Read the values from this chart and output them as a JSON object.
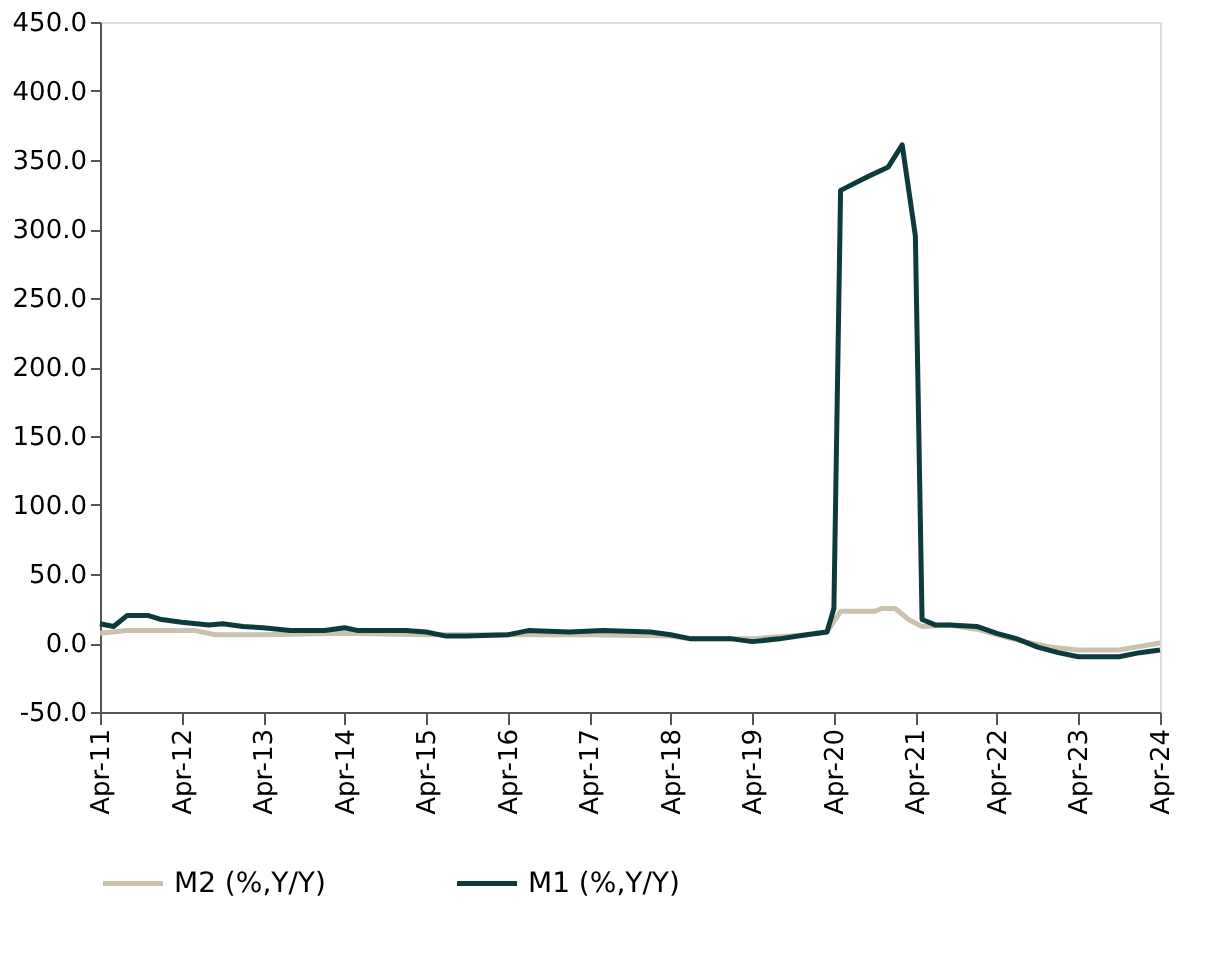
{
  "chart_data": {
    "type": "line",
    "xlim": [
      "2011-04",
      "2024-04"
    ],
    "xticks": [
      {
        "value": "2011-04",
        "label": "Apr-11"
      },
      {
        "value": "2012-04",
        "label": "Apr-12"
      },
      {
        "value": "2013-04",
        "label": "Apr-13"
      },
      {
        "value": "2014-04",
        "label": "Apr-14"
      },
      {
        "value": "2015-04",
        "label": "Apr-15"
      },
      {
        "value": "2016-04",
        "label": "Apr-16"
      },
      {
        "value": "2017-04",
        "label": "Apr-17"
      },
      {
        "value": "2018-04",
        "label": "Apr-18"
      },
      {
        "value": "2019-04",
        "label": "Apr-19"
      },
      {
        "value": "2020-04",
        "label": "Apr-20"
      },
      {
        "value": "2021-04",
        "label": "Apr-21"
      },
      {
        "value": "2022-04",
        "label": "Apr-22"
      },
      {
        "value": "2023-04",
        "label": "Apr-23"
      },
      {
        "value": "2024-04",
        "label": "Apr-24"
      }
    ],
    "ylim": [
      -50,
      450
    ],
    "yticks": [
      {
        "value": -50,
        "label": "-50.0"
      },
      {
        "value": 0,
        "label": "0.0"
      },
      {
        "value": 50,
        "label": "50.0"
      },
      {
        "value": 100,
        "label": "100.0"
      },
      {
        "value": 150,
        "label": "150.0"
      },
      {
        "value": 200,
        "label": "200.0"
      },
      {
        "value": 250,
        "label": "250.0"
      },
      {
        "value": 300,
        "label": "300.0"
      },
      {
        "value": 350,
        "label": "350.0"
      },
      {
        "value": 400,
        "label": "400.0"
      },
      {
        "value": 450,
        "label": "450.0"
      }
    ],
    "grid": false,
    "legend": "bottom",
    "marker": "none",
    "line_style": "solid",
    "series": [
      {
        "name": "M2 (%,Y/Y)",
        "color": "#c8c2ae",
        "x": [
          "2011-04",
          "2011-08",
          "2012-06",
          "2012-09",
          "2013-04",
          "2014-04",
          "2015-04",
          "2016-04",
          "2017-04",
          "2018-04",
          "2018-07",
          "2019-01",
          "2019-04",
          "2019-12",
          "2020-03",
          "2020-05",
          "2020-10",
          "2020-11",
          "2021-01",
          "2021-03",
          "2021-05",
          "2021-09",
          "2022-01",
          "2022-04",
          "2022-08",
          "2022-12",
          "2023-04",
          "2023-10",
          "2024-04"
        ],
        "values": [
          7,
          9,
          9,
          6,
          6,
          7,
          6,
          6,
          6,
          5,
          3,
          3,
          3,
          6,
          8,
          23,
          23,
          25,
          25,
          17,
          12,
          13,
          10,
          6,
          1,
          -3,
          -5,
          -5,
          0
        ]
      },
      {
        "name": "M1 (%,Y/Y)",
        "color": "#0d3b3b",
        "x": [
          "2011-04",
          "2011-06",
          "2011-08",
          "2011-11",
          "2012-01",
          "2012-04",
          "2012-08",
          "2012-10",
          "2013-01",
          "2013-04",
          "2013-08",
          "2014-01",
          "2014-04",
          "2014-06",
          "2015-01",
          "2015-04",
          "2015-07",
          "2015-10",
          "2016-04",
          "2016-07",
          "2017-01",
          "2017-06",
          "2018-01",
          "2018-04",
          "2018-07",
          "2019-01",
          "2019-04",
          "2019-08",
          "2019-12",
          "2020-03",
          "2020-04",
          "2020-05",
          "2020-09",
          "2020-12",
          "2021-02",
          "2021-04",
          "2021-05",
          "2021-07",
          "2021-09",
          "2022-01",
          "2022-04",
          "2022-07",
          "2022-10",
          "2023-01",
          "2023-04",
          "2023-10",
          "2024-01",
          "2024-04"
        ],
        "values": [
          14,
          12,
          20,
          20,
          17,
          15,
          13,
          14,
          12,
          11,
          9,
          9,
          11,
          9,
          9,
          8,
          5,
          5,
          6,
          9,
          8,
          9,
          8,
          6,
          3,
          3,
          1,
          3,
          6,
          8,
          25,
          328,
          338,
          345,
          361,
          295,
          17,
          13,
          13,
          12,
          7,
          3,
          -3,
          -7,
          -10,
          -10,
          -7,
          -5
        ]
      }
    ]
  }
}
